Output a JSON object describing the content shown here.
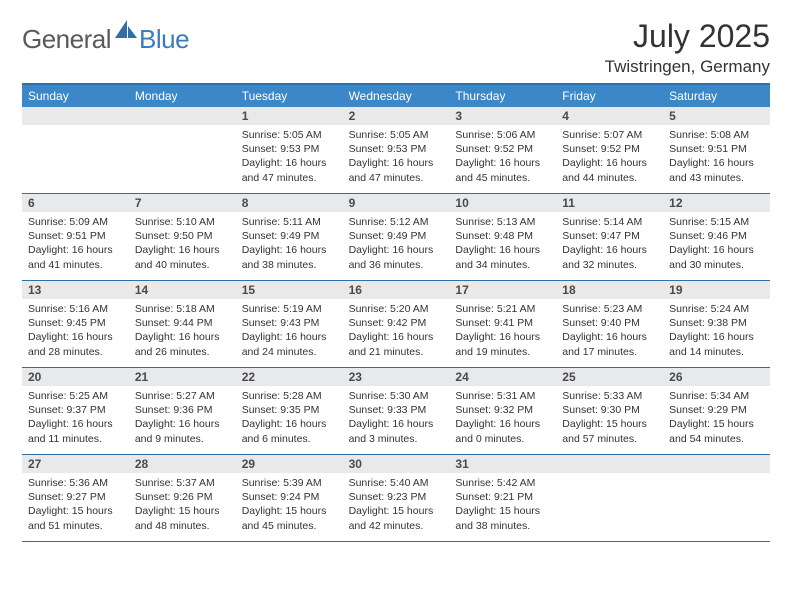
{
  "logo": {
    "general": "General",
    "blue": "Blue"
  },
  "title": "July 2025",
  "location": "Twistringen, Germany",
  "colors": {
    "header_bg": "#3c87c7",
    "border": "#2f6fa8",
    "daynum_bg": "#e8e9ea",
    "text": "#333333",
    "logo_gray": "#5a5a5a",
    "logo_blue": "#3b7bbf",
    "white": "#ffffff"
  },
  "dayNames": [
    "Sunday",
    "Monday",
    "Tuesday",
    "Wednesday",
    "Thursday",
    "Friday",
    "Saturday"
  ],
  "layout": {
    "columns": 7,
    "rows": 5,
    "first_weekday_index": 2
  },
  "weeks": [
    [
      {
        "n": "",
        "l1": "",
        "l2": "",
        "l3": "",
        "l4": ""
      },
      {
        "n": "",
        "l1": "",
        "l2": "",
        "l3": "",
        "l4": ""
      },
      {
        "n": "1",
        "l1": "Sunrise: 5:05 AM",
        "l2": "Sunset: 9:53 PM",
        "l3": "Daylight: 16 hours",
        "l4": "and 47 minutes."
      },
      {
        "n": "2",
        "l1": "Sunrise: 5:05 AM",
        "l2": "Sunset: 9:53 PM",
        "l3": "Daylight: 16 hours",
        "l4": "and 47 minutes."
      },
      {
        "n": "3",
        "l1": "Sunrise: 5:06 AM",
        "l2": "Sunset: 9:52 PM",
        "l3": "Daylight: 16 hours",
        "l4": "and 45 minutes."
      },
      {
        "n": "4",
        "l1": "Sunrise: 5:07 AM",
        "l2": "Sunset: 9:52 PM",
        "l3": "Daylight: 16 hours",
        "l4": "and 44 minutes."
      },
      {
        "n": "5",
        "l1": "Sunrise: 5:08 AM",
        "l2": "Sunset: 9:51 PM",
        "l3": "Daylight: 16 hours",
        "l4": "and 43 minutes."
      }
    ],
    [
      {
        "n": "6",
        "l1": "Sunrise: 5:09 AM",
        "l2": "Sunset: 9:51 PM",
        "l3": "Daylight: 16 hours",
        "l4": "and 41 minutes."
      },
      {
        "n": "7",
        "l1": "Sunrise: 5:10 AM",
        "l2": "Sunset: 9:50 PM",
        "l3": "Daylight: 16 hours",
        "l4": "and 40 minutes."
      },
      {
        "n": "8",
        "l1": "Sunrise: 5:11 AM",
        "l2": "Sunset: 9:49 PM",
        "l3": "Daylight: 16 hours",
        "l4": "and 38 minutes."
      },
      {
        "n": "9",
        "l1": "Sunrise: 5:12 AM",
        "l2": "Sunset: 9:49 PM",
        "l3": "Daylight: 16 hours",
        "l4": "and 36 minutes."
      },
      {
        "n": "10",
        "l1": "Sunrise: 5:13 AM",
        "l2": "Sunset: 9:48 PM",
        "l3": "Daylight: 16 hours",
        "l4": "and 34 minutes."
      },
      {
        "n": "11",
        "l1": "Sunrise: 5:14 AM",
        "l2": "Sunset: 9:47 PM",
        "l3": "Daylight: 16 hours",
        "l4": "and 32 minutes."
      },
      {
        "n": "12",
        "l1": "Sunrise: 5:15 AM",
        "l2": "Sunset: 9:46 PM",
        "l3": "Daylight: 16 hours",
        "l4": "and 30 minutes."
      }
    ],
    [
      {
        "n": "13",
        "l1": "Sunrise: 5:16 AM",
        "l2": "Sunset: 9:45 PM",
        "l3": "Daylight: 16 hours",
        "l4": "and 28 minutes."
      },
      {
        "n": "14",
        "l1": "Sunrise: 5:18 AM",
        "l2": "Sunset: 9:44 PM",
        "l3": "Daylight: 16 hours",
        "l4": "and 26 minutes."
      },
      {
        "n": "15",
        "l1": "Sunrise: 5:19 AM",
        "l2": "Sunset: 9:43 PM",
        "l3": "Daylight: 16 hours",
        "l4": "and 24 minutes."
      },
      {
        "n": "16",
        "l1": "Sunrise: 5:20 AM",
        "l2": "Sunset: 9:42 PM",
        "l3": "Daylight: 16 hours",
        "l4": "and 21 minutes."
      },
      {
        "n": "17",
        "l1": "Sunrise: 5:21 AM",
        "l2": "Sunset: 9:41 PM",
        "l3": "Daylight: 16 hours",
        "l4": "and 19 minutes."
      },
      {
        "n": "18",
        "l1": "Sunrise: 5:23 AM",
        "l2": "Sunset: 9:40 PM",
        "l3": "Daylight: 16 hours",
        "l4": "and 17 minutes."
      },
      {
        "n": "19",
        "l1": "Sunrise: 5:24 AM",
        "l2": "Sunset: 9:38 PM",
        "l3": "Daylight: 16 hours",
        "l4": "and 14 minutes."
      }
    ],
    [
      {
        "n": "20",
        "l1": "Sunrise: 5:25 AM",
        "l2": "Sunset: 9:37 PM",
        "l3": "Daylight: 16 hours",
        "l4": "and 11 minutes."
      },
      {
        "n": "21",
        "l1": "Sunrise: 5:27 AM",
        "l2": "Sunset: 9:36 PM",
        "l3": "Daylight: 16 hours",
        "l4": "and 9 minutes."
      },
      {
        "n": "22",
        "l1": "Sunrise: 5:28 AM",
        "l2": "Sunset: 9:35 PM",
        "l3": "Daylight: 16 hours",
        "l4": "and 6 minutes."
      },
      {
        "n": "23",
        "l1": "Sunrise: 5:30 AM",
        "l2": "Sunset: 9:33 PM",
        "l3": "Daylight: 16 hours",
        "l4": "and 3 minutes."
      },
      {
        "n": "24",
        "l1": "Sunrise: 5:31 AM",
        "l2": "Sunset: 9:32 PM",
        "l3": "Daylight: 16 hours",
        "l4": "and 0 minutes."
      },
      {
        "n": "25",
        "l1": "Sunrise: 5:33 AM",
        "l2": "Sunset: 9:30 PM",
        "l3": "Daylight: 15 hours",
        "l4": "and 57 minutes."
      },
      {
        "n": "26",
        "l1": "Sunrise: 5:34 AM",
        "l2": "Sunset: 9:29 PM",
        "l3": "Daylight: 15 hours",
        "l4": "and 54 minutes."
      }
    ],
    [
      {
        "n": "27",
        "l1": "Sunrise: 5:36 AM",
        "l2": "Sunset: 9:27 PM",
        "l3": "Daylight: 15 hours",
        "l4": "and 51 minutes."
      },
      {
        "n": "28",
        "l1": "Sunrise: 5:37 AM",
        "l2": "Sunset: 9:26 PM",
        "l3": "Daylight: 15 hours",
        "l4": "and 48 minutes."
      },
      {
        "n": "29",
        "l1": "Sunrise: 5:39 AM",
        "l2": "Sunset: 9:24 PM",
        "l3": "Daylight: 15 hours",
        "l4": "and 45 minutes."
      },
      {
        "n": "30",
        "l1": "Sunrise: 5:40 AM",
        "l2": "Sunset: 9:23 PM",
        "l3": "Daylight: 15 hours",
        "l4": "and 42 minutes."
      },
      {
        "n": "31",
        "l1": "Sunrise: 5:42 AM",
        "l2": "Sunset: 9:21 PM",
        "l3": "Daylight: 15 hours",
        "l4": "and 38 minutes."
      },
      {
        "n": "",
        "l1": "",
        "l2": "",
        "l3": "",
        "l4": ""
      },
      {
        "n": "",
        "l1": "",
        "l2": "",
        "l3": "",
        "l4": ""
      }
    ]
  ]
}
